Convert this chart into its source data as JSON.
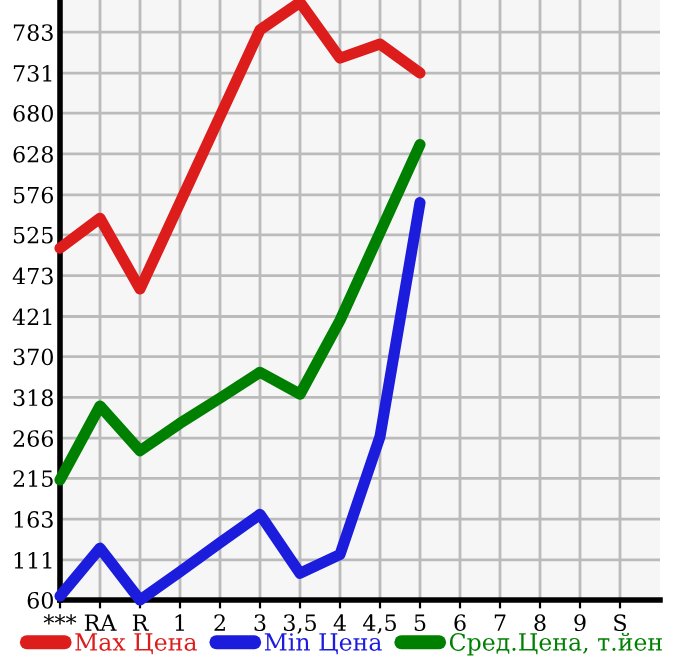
{
  "chart_data": {
    "type": "line",
    "categories": [
      "***",
      "RA",
      "R",
      "1",
      "2",
      "3",
      "3,5",
      "4",
      "4,5",
      "5",
      "6",
      "7",
      "8",
      "9",
      "S"
    ],
    "series": [
      {
        "name": "Max Цена",
        "color": "#dd1c1c",
        "values": [
          508,
          546,
          456,
          566,
          676,
          786,
          821,
          750,
          768,
          731,
          null,
          null,
          null,
          null,
          null
        ]
      },
      {
        "name": "Min Цена",
        "color": "#1c1cdd",
        "values": [
          65,
          126,
          60,
          96,
          133,
          169,
          94,
          118,
          268,
          566,
          null,
          null,
          null,
          null,
          null
        ]
      },
      {
        "name": "Сред.Цена, т.йен",
        "color": "#008000",
        "values": [
          213,
          307,
          250,
          285,
          317,
          350,
          322,
          416,
          528,
          640,
          null,
          null,
          null,
          null,
          null
        ]
      }
    ],
    "ylim": [
      60,
      824
    ],
    "yticks": [
      60,
      111,
      163,
      215,
      266,
      318,
      370,
      421,
      473,
      525,
      576,
      628,
      680,
      731,
      783
    ],
    "grid": true,
    "legend": "bottom",
    "marker": "none",
    "line_style": "solid"
  }
}
